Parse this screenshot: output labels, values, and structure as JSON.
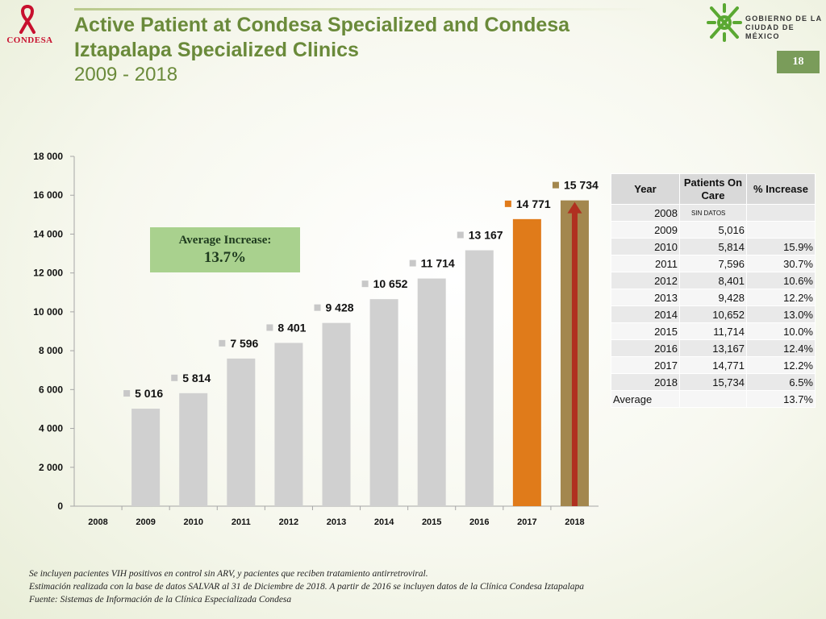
{
  "header": {
    "brand_left": "CONDESA",
    "title_line1": "Active Patient at Condesa Specialized and Condesa",
    "title_line2": "Iztapalapa Specialized Clinics",
    "title_line3": "2009 - 2018",
    "gov_line1": "GOBIERNO DE LA",
    "gov_line2": "CIUDAD DE MÉXICO",
    "page_number": "18"
  },
  "average_box": {
    "label": "Average Increase:",
    "value": "13.7%"
  },
  "chart_data": {
    "type": "bar",
    "categories": [
      "2008",
      "2009",
      "2010",
      "2011",
      "2012",
      "2013",
      "2014",
      "2015",
      "2016",
      "2017",
      "2018"
    ],
    "values": [
      null,
      5016,
      5814,
      7596,
      8401,
      9428,
      10652,
      11714,
      13167,
      14771,
      15734
    ],
    "data_labels": [
      "",
      "5 016",
      "5 814",
      "7 596",
      "8 401",
      "9 428",
      "10 652",
      "11 714",
      "13 167",
      "14 771",
      "15 734"
    ],
    "ylim": [
      0,
      18000
    ],
    "yticks": [
      0,
      2000,
      4000,
      6000,
      8000,
      10000,
      12000,
      14000,
      16000,
      18000
    ],
    "ytick_labels": [
      "0",
      "2 000",
      "4 000",
      "6 000",
      "8 000",
      "10 000",
      "12 000",
      "14 000",
      "16 000",
      "18 000"
    ],
    "grid": false,
    "colors": {
      "default": "#d0d0d0",
      "2017": "#e07b1a",
      "2018": "#a3874e",
      "marker_default": "#c8c8c8",
      "arrow": "#b03020"
    }
  },
  "table": {
    "headers": [
      "Year",
      "Patients On Care",
      "% Increase"
    ],
    "nodata_label": "SIN DATOS",
    "rows": [
      {
        "year": "2008",
        "patients": "",
        "increase": ""
      },
      {
        "year": "2009",
        "patients": "5,016",
        "increase": ""
      },
      {
        "year": "2010",
        "patients": "5,814",
        "increase": "15.9%"
      },
      {
        "year": "2011",
        "patients": "7,596",
        "increase": "30.7%"
      },
      {
        "year": "2012",
        "patients": "8,401",
        "increase": "10.6%"
      },
      {
        "year": "2013",
        "patients": "9,428",
        "increase": "12.2%"
      },
      {
        "year": "2014",
        "patients": "10,652",
        "increase": "13.0%"
      },
      {
        "year": "2015",
        "patients": "11,714",
        "increase": "10.0%"
      },
      {
        "year": "2016",
        "patients": "13,167",
        "increase": "12.4%"
      },
      {
        "year": "2017",
        "patients": "14,771",
        "increase": "12.2%"
      },
      {
        "year": "2018",
        "patients": "15,734",
        "increase": "6.5%"
      }
    ],
    "average_label": "Average",
    "average_value": "13.7%"
  },
  "notes": [
    "Se incluyen pacientes VIH positivos en control sin ARV, y pacientes que reciben tratamiento antirretroviral.",
    "Estimación realizada con la base de datos SALVAR al 31 de Diciembre de 2018.  A partir de 2016 se incluyen datos de la Clínica Condesa Iztapalapa",
    "Fuente: Sistemas de Información de la Clínica Especializada Condesa"
  ]
}
